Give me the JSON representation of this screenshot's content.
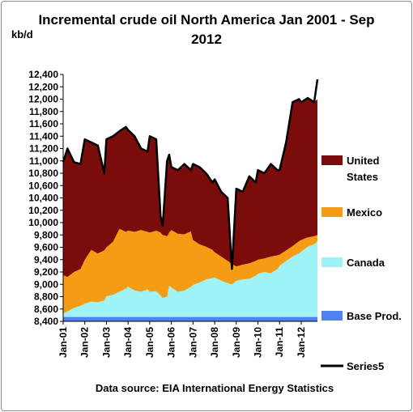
{
  "chart_data": {
    "type": "area",
    "title": "Incremental crude oil North America  Jan 2001 - Sep 2012",
    "ylabel": "kb/d",
    "source": "Data source: EIA International Energy Statistics",
    "ylim": [
      8400,
      12400
    ],
    "yticks": [
      "8,400",
      "8,600",
      "8,800",
      "9,000",
      "9,200",
      "9,400",
      "9,600",
      "9,800",
      "10,000",
      "10,200",
      "10,400",
      "10,600",
      "10,800",
      "11,000",
      "11,200",
      "11,400",
      "11,600",
      "11,800",
      "12,000",
      "12,200",
      "12,400"
    ],
    "categories": [
      "Jan-01",
      "Jan-02",
      "Jan-03",
      "Jan-04",
      "Jan-05",
      "Jan-06",
      "Jan-07",
      "Jan-08",
      "Jan-09",
      "Jan-10",
      "Jan-11",
      "Jan-12"
    ],
    "x_range": [
      2001.0,
      2012.75
    ],
    "legend_placement": "right",
    "colors": {
      "base": "#4f81f0",
      "canada": "#9ff3f7",
      "mexico": "#f59b14",
      "us": "#7b0c0c",
      "series5": "#000000"
    },
    "series": [
      {
        "name": "Base Prod.",
        "key": "base",
        "x": [
          2001.0,
          2012.75
        ],
        "values": [
          8470,
          8470
        ]
      },
      {
        "name": "Canada",
        "key": "canada",
        "x": [
          2001.0,
          2001.2,
          2001.5,
          2001.8,
          2002.0,
          2002.3,
          2002.6,
          2002.9,
          2003.0,
          2003.3,
          2003.6,
          2003.9,
          2004.0,
          2004.3,
          2004.6,
          2004.9,
          2005.0,
          2005.3,
          2005.5,
          2005.6,
          2005.8,
          2005.9,
          2006.0,
          2006.3,
          2006.6,
          2006.9,
          2007.0,
          2007.3,
          2007.6,
          2007.9,
          2008.0,
          2008.3,
          2008.6,
          2008.8,
          2009.0,
          2009.3,
          2009.6,
          2009.9,
          2010.0,
          2010.3,
          2010.6,
          2010.9,
          2011.0,
          2011.3,
          2011.6,
          2011.9,
          2012.0,
          2012.3,
          2012.6,
          2012.75
        ],
        "values": [
          8530,
          8560,
          8620,
          8650,
          8690,
          8720,
          8710,
          8740,
          8810,
          8830,
          8880,
          8930,
          8960,
          8900,
          8880,
          8920,
          8880,
          8890,
          8820,
          8780,
          8800,
          8980,
          8950,
          8880,
          8900,
          8960,
          8990,
          9030,
          9080,
          9100,
          9110,
          9060,
          9020,
          9000,
          9060,
          9080,
          9090,
          9140,
          9170,
          9200,
          9180,
          9250,
          9300,
          9380,
          9450,
          9500,
          9530,
          9610,
          9650,
          9700
        ]
      },
      {
        "name": "Mexico",
        "key": "mexico",
        "x": [
          2001.0,
          2001.2,
          2001.5,
          2001.8,
          2002.0,
          2002.3,
          2002.6,
          2002.9,
          2003.0,
          2003.3,
          2003.6,
          2003.9,
          2004.0,
          2004.3,
          2004.6,
          2004.9,
          2005.0,
          2005.3,
          2005.5,
          2005.6,
          2005.8,
          2005.9,
          2006.0,
          2006.3,
          2006.6,
          2006.9,
          2007.0,
          2007.3,
          2007.6,
          2007.9,
          2008.0,
          2008.3,
          2008.6,
          2008.8,
          2009.0,
          2009.3,
          2009.6,
          2009.9,
          2010.0,
          2010.3,
          2010.6,
          2010.9,
          2011.0,
          2011.3,
          2011.6,
          2011.9,
          2012.0,
          2012.3,
          2012.6,
          2012.75
        ],
        "values": [
          9150,
          9120,
          9200,
          9250,
          9400,
          9560,
          9500,
          9550,
          9600,
          9690,
          9900,
          9850,
          9870,
          9850,
          9880,
          9850,
          9840,
          9870,
          9840,
          9800,
          9780,
          9840,
          9880,
          9820,
          9810,
          9860,
          9720,
          9650,
          9610,
          9560,
          9520,
          9450,
          9380,
          9330,
          9290,
          9320,
          9340,
          9380,
          9400,
          9420,
          9450,
          9470,
          9480,
          9550,
          9620,
          9700,
          9720,
          9760,
          9780,
          9800
        ]
      },
      {
        "name": "United States",
        "key": "us",
        "x": [
          2001.0,
          2001.2,
          2001.5,
          2001.8,
          2002.0,
          2002.3,
          2002.6,
          2002.9,
          2003.0,
          2003.3,
          2003.6,
          2003.9,
          2004.0,
          2004.3,
          2004.6,
          2004.9,
          2005.0,
          2005.3,
          2005.5,
          2005.6,
          2005.8,
          2005.9,
          2006.0,
          2006.3,
          2006.6,
          2006.9,
          2007.0,
          2007.3,
          2007.6,
          2007.9,
          2008.0,
          2008.3,
          2008.6,
          2008.8,
          2009.0,
          2009.3,
          2009.6,
          2009.9,
          2010.0,
          2010.3,
          2010.6,
          2010.9,
          2011.0,
          2011.3,
          2011.6,
          2011.9,
          2012.0,
          2012.3,
          2012.6,
          2012.75
        ],
        "values": [
          10980,
          11200,
          10980,
          10950,
          11350,
          11300,
          11250,
          10800,
          11350,
          11400,
          11480,
          11550,
          11500,
          11400,
          11200,
          11150,
          11400,
          11350,
          10100,
          9950,
          11000,
          11100,
          10900,
          10850,
          10950,
          10850,
          10950,
          10900,
          10800,
          10650,
          10700,
          10500,
          10400,
          9250,
          10550,
          10500,
          10750,
          10650,
          10850,
          10800,
          10950,
          10850,
          10850,
          11300,
          11950,
          12000,
          11950,
          12020,
          11950,
          12000
        ]
      },
      {
        "name": "Series5",
        "key": "series5",
        "x": [
          2001.0,
          2001.2,
          2001.5,
          2001.8,
          2002.0,
          2002.3,
          2002.6,
          2002.9,
          2003.0,
          2003.3,
          2003.6,
          2003.9,
          2004.0,
          2004.3,
          2004.6,
          2004.9,
          2005.0,
          2005.3,
          2005.5,
          2005.6,
          2005.8,
          2005.9,
          2006.0,
          2006.3,
          2006.6,
          2006.9,
          2007.0,
          2007.3,
          2007.6,
          2007.9,
          2008.0,
          2008.3,
          2008.6,
          2008.8,
          2009.0,
          2009.3,
          2009.6,
          2009.9,
          2010.0,
          2010.3,
          2010.6,
          2010.9,
          2011.0,
          2011.3,
          2011.6,
          2011.9,
          2012.0,
          2012.3,
          2012.6,
          2012.75
        ],
        "values": [
          10980,
          11200,
          10980,
          10950,
          11350,
          11300,
          11250,
          10800,
          11350,
          11400,
          11480,
          11550,
          11500,
          11400,
          11200,
          11150,
          11400,
          11350,
          10100,
          9950,
          11000,
          11100,
          10900,
          10850,
          10950,
          10850,
          10950,
          10900,
          10800,
          10650,
          10700,
          10500,
          10400,
          9250,
          10550,
          10500,
          10750,
          10650,
          10850,
          10800,
          10950,
          10850,
          10850,
          11300,
          11950,
          12000,
          11950,
          12020,
          11950,
          12320
        ]
      }
    ],
    "legend": [
      {
        "key": "us",
        "lines": [
          "United",
          "States"
        ]
      },
      {
        "key": "mexico",
        "lines": [
          "Mexico"
        ]
      },
      {
        "key": "canada",
        "lines": [
          "Canada"
        ]
      },
      {
        "key": "base",
        "lines": [
          "Base Prod."
        ]
      },
      {
        "key": "series5",
        "lines": [
          "Series5"
        ]
      }
    ]
  }
}
